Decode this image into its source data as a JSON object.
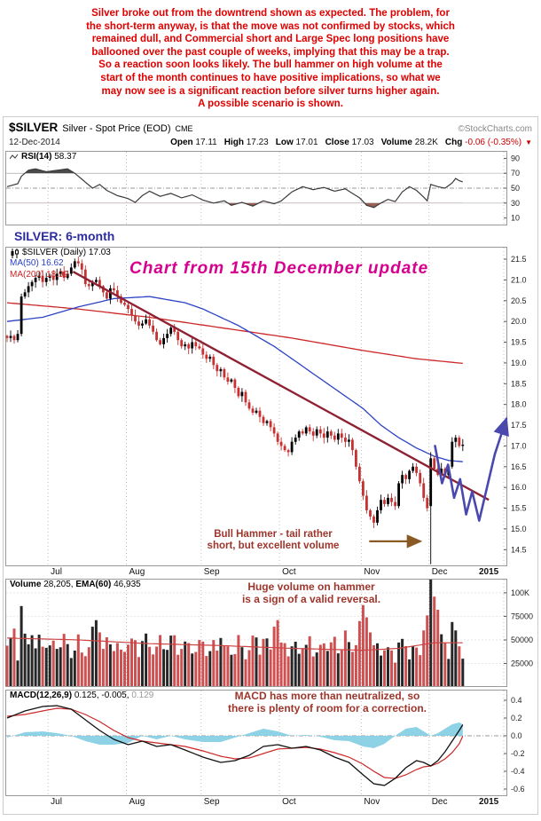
{
  "intro": {
    "lines": [
      "Silver broke out from the downtrend shown as expected. The problem, for",
      "the short-term anyway, is that the move was not confirmed by stocks, which",
      "remained dull, and Commercial short and Large Spec long positions have",
      "ballooned over the past couple of weeks, implying that this may be a trap.",
      "So a reaction soon looks likely. The bull hammer on high volume at the",
      "start of the month continues to have positive implications, so what we",
      "may now see is a significant reaction before silver turns higher again.",
      "A possible scenario is shown."
    ]
  },
  "header": {
    "symbol": "$SILVER",
    "name": "Silver - Spot Price (EOD)",
    "exchange": "CME",
    "copyright": "©StockCharts.com",
    "date": "12-Dec-2014",
    "quote": {
      "open_label": "Open",
      "open": "17.11",
      "high_label": "High",
      "high": "17.23",
      "low_label": "Low",
      "low": "17.01",
      "close_label": "Close",
      "close": "17.03",
      "volume_label": "Volume",
      "volume": "28.2K",
      "chg_label": "Chg",
      "chg": "-0.06 (-0.35%)",
      "triangle": "▼"
    }
  },
  "rsi_panel": {
    "label": "RSI(14)",
    "value": "58.37"
  },
  "chart_label": "SILVER: 6-month",
  "main_panel": {
    "legend_symbol": "$SILVER (Daily) 17.03",
    "legend_ma50": "MA(50) 16.62",
    "legend_ma200": "MA(200) 18.99",
    "annotation_update": "Chart from 15th December update",
    "annotation_hammer_line1": "Bull Hammer - tail rather",
    "annotation_hammer_line2": "short, but excellent volume"
  },
  "volume_panel": {
    "legend_volume_label": "Volume",
    "legend_volume_value": "28,205,",
    "legend_ema_label": "EMA(60)",
    "legend_ema_value": "46,935",
    "annotation_line1": "Huge volume on hammer",
    "annotation_line2": "is a sign of a valid reversal."
  },
  "macd_panel": {
    "name": "MACD(12,26,9)",
    "values": "0.125, -0.005,",
    "hist": "0.129",
    "annotation_line1": "MACD has more than neutralized, so",
    "annotation_line2": "there is plenty of room for a correction."
  },
  "xaxis": {
    "months": [
      "Jul",
      "Aug",
      "Sep",
      "Oct",
      "Nov",
      "Dec"
    ],
    "year": "2015"
  },
  "chart_data": {
    "type": "candlestick",
    "title": "$SILVER Silver - Spot Price (EOD) CME",
    "date": "12-Dec-2014",
    "last_quote": {
      "open": 17.11,
      "high": 17.23,
      "low": 17.01,
      "close": 17.03,
      "volume": "28.2K",
      "change": "-0.06 (-0.35%)"
    },
    "total_slots": 141,
    "month_start_indices": [
      12,
      34,
      55,
      77,
      100,
      119,
      140
    ],
    "x_labels": [
      "Jul",
      "Aug",
      "Sep",
      "Oct",
      "Nov",
      "Dec",
      "2015"
    ],
    "price": {
      "domain": [
        14.1,
        21.8
      ],
      "ticks": [
        21.5,
        21.0,
        20.5,
        20.0,
        19.5,
        19.0,
        18.5,
        18.0,
        17.5,
        17.0,
        16.5,
        16.0,
        15.5,
        15.0,
        14.5
      ],
      "closes": [
        19.6,
        19.65,
        19.55,
        19.7,
        20.6,
        20.7,
        20.85,
        20.95,
        21.05,
        21.1,
        20.95,
        21.05,
        21.1,
        21.0,
        21.15,
        21.2,
        21.05,
        21.15,
        21.3,
        21.45,
        21.4,
        21.25,
        20.9,
        20.85,
        20.95,
        21.0,
        20.85,
        20.7,
        20.55,
        20.8,
        20.75,
        20.6,
        20.45,
        20.4,
        20.3,
        20.15,
        20.0,
        19.9,
        19.95,
        20.05,
        19.9,
        19.75,
        19.55,
        19.45,
        19.6,
        19.7,
        19.85,
        19.75,
        19.55,
        19.4,
        19.45,
        19.35,
        19.5,
        19.4,
        19.35,
        19.2,
        19.1,
        19.15,
        18.95,
        18.8,
        18.85,
        18.65,
        18.55,
        18.6,
        18.4,
        18.2,
        18.3,
        18.05,
        17.9,
        17.8,
        17.85,
        17.7,
        17.55,
        17.6,
        17.45,
        17.3,
        17.1,
        17.0,
        16.9,
        16.85,
        17.1,
        17.2,
        17.35,
        17.3,
        17.45,
        17.35,
        17.25,
        17.4,
        17.3,
        17.2,
        17.35,
        17.25,
        17.15,
        17.3,
        17.2,
        17.1,
        17.15,
        16.9,
        16.5,
        16.15,
        15.8,
        15.45,
        15.3,
        15.15,
        15.45,
        15.7,
        15.6,
        15.75,
        15.65,
        15.55,
        16.1,
        16.3,
        16.2,
        16.4,
        16.5,
        16.35,
        16.1,
        15.75,
        15.5,
        16.7,
        16.45,
        16.3,
        16.45,
        16.3,
        16.5,
        17.1,
        17.2,
        17.0,
        17.03
      ],
      "specials": {
        "119": {
          "open": 15.55,
          "high": 16.85,
          "low": 14.15,
          "close": 16.7
        }
      },
      "ma50_last": 16.62,
      "ma200_last": 18.99,
      "ma50": [
        [
          0,
          20.0
        ],
        [
          10,
          20.1
        ],
        [
          20,
          20.35
        ],
        [
          30,
          20.55
        ],
        [
          40,
          20.6
        ],
        [
          50,
          20.45
        ],
        [
          55,
          20.3
        ],
        [
          65,
          19.9
        ],
        [
          75,
          19.4
        ],
        [
          85,
          18.8
        ],
        [
          95,
          18.2
        ],
        [
          100,
          17.9
        ],
        [
          105,
          17.5
        ],
        [
          110,
          17.2
        ],
        [
          115,
          16.95
        ],
        [
          120,
          16.75
        ],
        [
          124,
          16.65
        ],
        [
          128,
          16.62
        ]
      ],
      "ma200": [
        [
          0,
          20.45
        ],
        [
          20,
          20.3
        ],
        [
          40,
          20.1
        ],
        [
          60,
          19.85
        ],
        [
          80,
          19.6
        ],
        [
          100,
          19.3
        ],
        [
          115,
          19.1
        ],
        [
          128,
          18.99
        ]
      ],
      "trendline": {
        "x1": 0.135,
        "y1": 21.2,
        "x2": 0.963,
        "y2": 15.7
      },
      "scenario": [
        [
          0.856,
          17.0
        ],
        [
          0.87,
          16.1
        ],
        [
          0.882,
          16.55
        ],
        [
          0.894,
          15.75
        ],
        [
          0.906,
          16.2
        ],
        [
          0.918,
          15.35
        ],
        [
          0.93,
          15.9
        ],
        [
          0.944,
          15.2
        ],
        [
          0.975,
          16.8
        ],
        [
          0.998,
          17.65
        ]
      ],
      "hammer_arrow": {
        "x1": 0.725,
        "x2": 0.827,
        "y": 14.7
      }
    },
    "rsi": {
      "domain": [
        0,
        100
      ],
      "ticks": [
        90,
        70,
        50,
        30,
        10
      ],
      "overbought": 70,
      "oversold": 30,
      "mid": 50,
      "last": 58.37,
      "points": [
        [
          0,
          52
        ],
        [
          3,
          56
        ],
        [
          4,
          66
        ],
        [
          6,
          74
        ],
        [
          8,
          76
        ],
        [
          11,
          72
        ],
        [
          14,
          74
        ],
        [
          17,
          76
        ],
        [
          19,
          70
        ],
        [
          21,
          62
        ],
        [
          24,
          50
        ],
        [
          26,
          55
        ],
        [
          28,
          47
        ],
        [
          31,
          40
        ],
        [
          34,
          36
        ],
        [
          36,
          31
        ],
        [
          38,
          40
        ],
        [
          40,
          46
        ],
        [
          43,
          39
        ],
        [
          46,
          43
        ],
        [
          49,
          37
        ],
        [
          52,
          41
        ],
        [
          55,
          34
        ],
        [
          58,
          30
        ],
        [
          61,
          33
        ],
        [
          63,
          27
        ],
        [
          66,
          31
        ],
        [
          69,
          26
        ],
        [
          72,
          33
        ],
        [
          75,
          29
        ],
        [
          77,
          33
        ],
        [
          80,
          45
        ],
        [
          83,
          52
        ],
        [
          86,
          48
        ],
        [
          89,
          51
        ],
        [
          92,
          46
        ],
        [
          95,
          49
        ],
        [
          97,
          43
        ],
        [
          99,
          37
        ],
        [
          101,
          27
        ],
        [
          103,
          24
        ],
        [
          105,
          30
        ],
        [
          107,
          35
        ],
        [
          109,
          32
        ],
        [
          111,
          45
        ],
        [
          113,
          52
        ],
        [
          115,
          47
        ],
        [
          117,
          38
        ],
        [
          118,
          33
        ],
        [
          119,
          55
        ],
        [
          121,
          52
        ],
        [
          123,
          50
        ],
        [
          125,
          57
        ],
        [
          126,
          63
        ],
        [
          127,
          60
        ],
        [
          128,
          58.4
        ]
      ]
    },
    "volume": {
      "domain": [
        0,
        115000
      ],
      "ticks": [
        {
          "v": 100000,
          "label": "100K"
        },
        {
          "v": 75000,
          "label": "75000"
        },
        {
          "v": 50000,
          "label": "50000"
        },
        {
          "v": 25000,
          "label": "25000"
        }
      ],
      "last": 28205,
      "ema_last": 46935,
      "ema": [
        [
          0,
          52000
        ],
        [
          20,
          50000
        ],
        [
          40,
          46000
        ],
        [
          60,
          44000
        ],
        [
          80,
          41000
        ],
        [
          100,
          39000
        ],
        [
          110,
          41000
        ],
        [
          120,
          47000
        ],
        [
          128,
          46935
        ]
      ],
      "overrides": {
        "2": 62000,
        "4": 86000,
        "7": 55000,
        "24": 64000,
        "25": 71000,
        "26": 58000,
        "60": 52000,
        "75": 64000,
        "76": 71000,
        "95": 60000,
        "99": 70000,
        "100": 87000,
        "101": 74000,
        "102": 58000,
        "117": 60000,
        "118": 76000,
        "119": 157000,
        "120": 96000,
        "121": 82000,
        "122": 56000,
        "125": 69000,
        "126": 60000
      }
    },
    "macd": {
      "domain": [
        -0.68,
        0.52
      ],
      "ticks": [
        0.4,
        0.2,
        0.0,
        -0.2,
        -0.4,
        -0.6
      ],
      "last_macd": 0.125,
      "last_signal": -0.005,
      "last_hist": 0.129,
      "macd_points": [
        [
          0,
          0.2
        ],
        [
          5,
          0.28
        ],
        [
          10,
          0.33
        ],
        [
          14,
          0.34
        ],
        [
          18,
          0.3
        ],
        [
          22,
          0.18
        ],
        [
          26,
          0.06
        ],
        [
          30,
          -0.04
        ],
        [
          34,
          -0.1
        ],
        [
          38,
          -0.06
        ],
        [
          42,
          -0.12
        ],
        [
          46,
          -0.1
        ],
        [
          50,
          -0.16
        ],
        [
          55,
          -0.24
        ],
        [
          60,
          -0.3
        ],
        [
          64,
          -0.28
        ],
        [
          68,
          -0.22
        ],
        [
          72,
          -0.12
        ],
        [
          76,
          -0.1
        ],
        [
          80,
          -0.14
        ],
        [
          84,
          -0.12
        ],
        [
          88,
          -0.16
        ],
        [
          92,
          -0.24
        ],
        [
          96,
          -0.3
        ],
        [
          100,
          -0.44
        ],
        [
          103,
          -0.54
        ],
        [
          106,
          -0.56
        ],
        [
          109,
          -0.48
        ],
        [
          112,
          -0.36
        ],
        [
          115,
          -0.28
        ],
        [
          117,
          -0.3
        ],
        [
          119,
          -0.34
        ],
        [
          121,
          -0.28
        ],
        [
          123,
          -0.18
        ],
        [
          125,
          -0.06
        ],
        [
          127,
          0.06
        ],
        [
          128,
          0.125
        ]
      ],
      "signal_points": [
        [
          0,
          0.22
        ],
        [
          5,
          0.24
        ],
        [
          10,
          0.28
        ],
        [
          14,
          0.31
        ],
        [
          18,
          0.3
        ],
        [
          22,
          0.24
        ],
        [
          26,
          0.16
        ],
        [
          30,
          0.06
        ],
        [
          34,
          -0.02
        ],
        [
          38,
          -0.06
        ],
        [
          42,
          -0.08
        ],
        [
          46,
          -0.1
        ],
        [
          50,
          -0.12
        ],
        [
          55,
          -0.17
        ],
        [
          60,
          -0.23
        ],
        [
          64,
          -0.26
        ],
        [
          68,
          -0.25
        ],
        [
          72,
          -0.2
        ],
        [
          76,
          -0.15
        ],
        [
          80,
          -0.14
        ],
        [
          84,
          -0.13
        ],
        [
          88,
          -0.15
        ],
        [
          92,
          -0.19
        ],
        [
          96,
          -0.24
        ],
        [
          100,
          -0.32
        ],
        [
          103,
          -0.4
        ],
        [
          106,
          -0.47
        ],
        [
          109,
          -0.48
        ],
        [
          112,
          -0.44
        ],
        [
          115,
          -0.38
        ],
        [
          117,
          -0.35
        ],
        [
          119,
          -0.34
        ],
        [
          121,
          -0.31
        ],
        [
          123,
          -0.26
        ],
        [
          125,
          -0.19
        ],
        [
          127,
          -0.09
        ],
        [
          128,
          -0.005
        ]
      ]
    },
    "colors": {
      "up": "#000000",
      "down": "#c63232",
      "ma50": "#2b43c4",
      "ma200": "#cc2626",
      "trendline": "#8e2233",
      "scenario": "#4848ae",
      "macd": "#111111",
      "signal": "#cc2626",
      "histogram": "#82cde2",
      "rsi": "#3a3a3a",
      "rsi_overbought_fill": "#4a4a4a",
      "rsi_oversold_fill": "#9c5f55",
      "volume_ema": "#cc4444",
      "arrow": "#8a5a24"
    }
  }
}
